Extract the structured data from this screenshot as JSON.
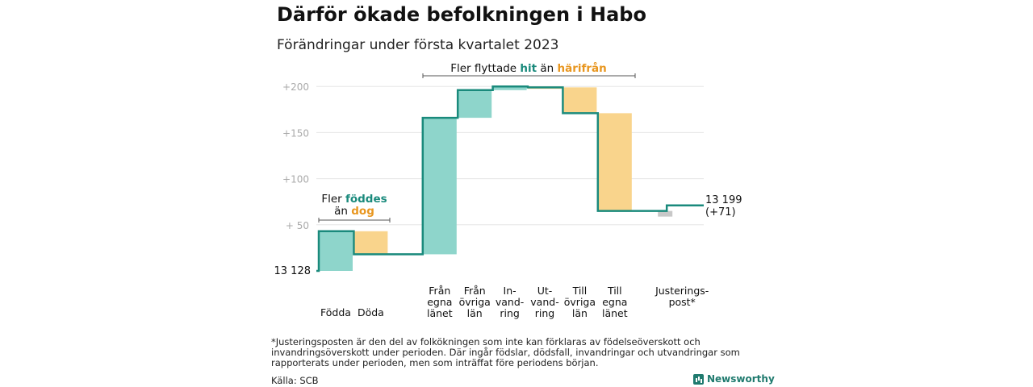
{
  "title": "Därför ökade befolkningen i Habo",
  "subtitle": "Förändringar under första kvartalet 2023",
  "colors": {
    "increase": "#8ed5cb",
    "decrease": "#f9d48c",
    "adjust": "#c8c8c8",
    "line": "#1a8a7c",
    "teal_text": "#1a8a7c",
    "orange_text": "#e8961f",
    "axis_text": "#aaaaaa"
  },
  "chart_data": {
    "type": "waterfall",
    "y_tick_labels": [
      "+ 50",
      "+100",
      "+150",
      "+200"
    ],
    "y_ticks": [
      50,
      100,
      150,
      200
    ],
    "ylim": [
      0,
      200
    ],
    "start": {
      "label": "13 128",
      "value": 0
    },
    "end": {
      "label_line1": "13 199",
      "label_line2": "(+71)",
      "value": 71
    },
    "steps": [
      {
        "label": [
          "Födda"
        ],
        "delta": 43,
        "kind": "increase"
      },
      {
        "label": [
          "Döda"
        ],
        "delta": -25,
        "kind": "decrease"
      },
      {
        "label": [
          "Från",
          "egna",
          "länet"
        ],
        "delta": 148,
        "kind": "increase"
      },
      {
        "label": [
          "Från",
          "övriga",
          "län"
        ],
        "delta": 30,
        "kind": "increase"
      },
      {
        "label": [
          "In-",
          "vand-",
          "ring"
        ],
        "delta": 4,
        "kind": "increase"
      },
      {
        "label": [
          "Ut-",
          "vand-",
          "ring"
        ],
        "delta": -1,
        "kind": "decrease"
      },
      {
        "label": [
          "Till",
          "övriga",
          "län"
        ],
        "delta": -28,
        "kind": "decrease"
      },
      {
        "label": [
          "Till",
          "egna",
          "länet"
        ],
        "delta": -106,
        "kind": "decrease"
      },
      {
        "label": [
          "Justerings-",
          "post*"
        ],
        "delta": 6,
        "kind": "adjust"
      }
    ]
  },
  "annotations": {
    "births": {
      "line1_prefix": "Fler ",
      "line1_highlight": "föddes",
      "line2_prefix": "än ",
      "line2_highlight": "dog"
    },
    "migration": {
      "prefix": "Fler flyttade ",
      "highlight1": "hit",
      "middle": " än ",
      "highlight2": "härifrån"
    }
  },
  "footnote": "*Justeringsposten är den del av folkökningen som inte kan förklaras av födelseöverskott och invandringsöverskott under perioden. Där ingår födslar, dödsfall, invandringar och utvandringar som rapporterats under perioden, men som inträffat före periodens början.",
  "source": "Källa: SCB",
  "brand": "Newsworthy"
}
